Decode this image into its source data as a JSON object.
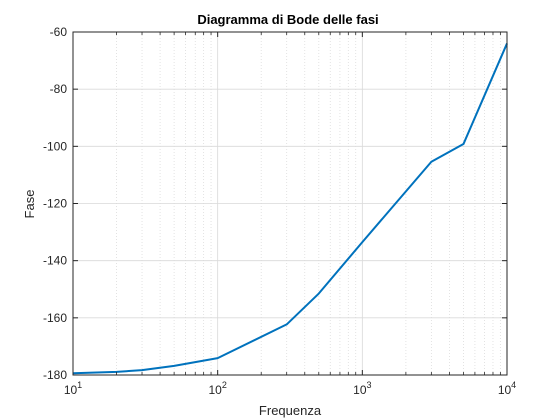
{
  "chart_data": {
    "type": "line",
    "title": "Diagramma di Bode delle fasi",
    "xlabel": "Frequenza",
    "ylabel": "Fase",
    "xscale": "log",
    "xlim": [
      10,
      10000
    ],
    "ylim": [
      -180,
      -60
    ],
    "grid": true,
    "minor_grid": true,
    "legend": "none",
    "xticks": [
      {
        "base": "10",
        "exp": "1"
      },
      {
        "base": "10",
        "exp": "2"
      },
      {
        "base": "10",
        "exp": "3"
      },
      {
        "base": "10",
        "exp": "4"
      }
    ],
    "yticks": [
      "-60",
      "-80",
      "-100",
      "-120",
      "-140",
      "-160",
      "-180"
    ],
    "series": [
      {
        "color": "#0072BD",
        "x": [
          10,
          20,
          30,
          50,
          100,
          300,
          500,
          1000,
          3000,
          5000,
          10000
        ],
        "y": [
          -179.4,
          -178.9,
          -178.3,
          -176.8,
          -174.1,
          -162.3,
          -151.5,
          -133.5,
          -105.4,
          -99.2,
          -64.0
        ]
      }
    ]
  }
}
